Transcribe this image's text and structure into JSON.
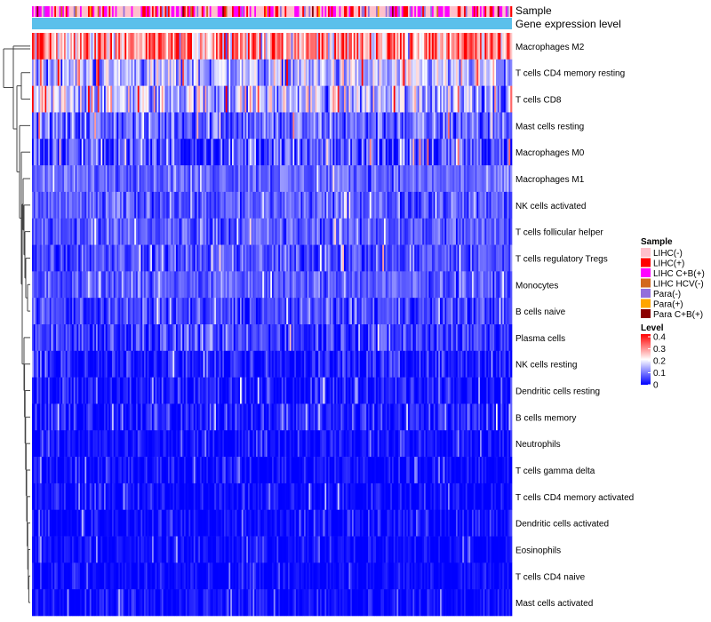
{
  "chart_data": {
    "type": "heatmap",
    "title": "",
    "annotation_tracks": [
      "Sample",
      "Gene expression level"
    ],
    "rows": [
      {
        "label": "Macrophages M2",
        "mean": 0.28,
        "spread": 0.12
      },
      {
        "label": "T cells CD4 memory resting",
        "mean": 0.14,
        "spread": 0.09
      },
      {
        "label": "T cells CD8",
        "mean": 0.15,
        "spread": 0.1
      },
      {
        "label": "Mast cells resting",
        "mean": 0.08,
        "spread": 0.07
      },
      {
        "label": "Macrophages M0",
        "mean": 0.06,
        "spread": 0.09
      },
      {
        "label": "Macrophages M1",
        "mean": 0.08,
        "spread": 0.04
      },
      {
        "label": "NK cells activated",
        "mean": 0.07,
        "spread": 0.05
      },
      {
        "label": "T cells follicular helper",
        "mean": 0.07,
        "spread": 0.05
      },
      {
        "label": "T cells regulatory  Tregs",
        "mean": 0.06,
        "spread": 0.05
      },
      {
        "label": "Monocytes",
        "mean": 0.07,
        "spread": 0.04
      },
      {
        "label": "B cells naive",
        "mean": 0.05,
        "spread": 0.05
      },
      {
        "label": "Plasma cells",
        "mean": 0.05,
        "spread": 0.06
      },
      {
        "label": "NK cells resting",
        "mean": 0.02,
        "spread": 0.05
      },
      {
        "label": "Dendritic cells resting",
        "mean": 0.02,
        "spread": 0.05
      },
      {
        "label": "B cells memory",
        "mean": 0.02,
        "spread": 0.05
      },
      {
        "label": "Neutrophils",
        "mean": 0.01,
        "spread": 0.03
      },
      {
        "label": "T cells gamma delta",
        "mean": 0.005,
        "spread": 0.04
      },
      {
        "label": "T cells CD4 memory activated",
        "mean": 0.005,
        "spread": 0.04
      },
      {
        "label": "Dendritic cells activated",
        "mean": 0.004,
        "spread": 0.04
      },
      {
        "label": "Eosinophils",
        "mean": 0.003,
        "spread": 0.03
      },
      {
        "label": "T cells CD4 naive",
        "mean": 0.003,
        "spread": 0.03
      },
      {
        "label": "Mast cells activated",
        "mean": 0.005,
        "spread": 0.04
      }
    ],
    "n_samples": 300,
    "legend_sample": {
      "title": "Sample",
      "items": [
        {
          "label": "LIHC(-)",
          "color": "#FFC0CB"
        },
        {
          "label": "LIHC(+)",
          "color": "#FF0000"
        },
        {
          "label": "LIHC C+B(+)",
          "color": "#FF00FF"
        },
        {
          "label": "LIHC HCV(-)",
          "color": "#D2691E"
        },
        {
          "label": "Para(-)",
          "color": "#9370DB"
        },
        {
          "label": "Para(+)",
          "color": "#FFA500"
        },
        {
          "label": "Para C+B(+)",
          "color": "#8B0000"
        }
      ]
    },
    "legend_level": {
      "title": "Level",
      "range": [
        0,
        0.4
      ],
      "ticks": [
        "0.4",
        "0.3",
        "0.2",
        "0.1",
        "0"
      ],
      "colors": [
        "#0000FF",
        "#FFFFFF",
        "#FF0000"
      ]
    },
    "expression_color": "#5BC0EB"
  }
}
